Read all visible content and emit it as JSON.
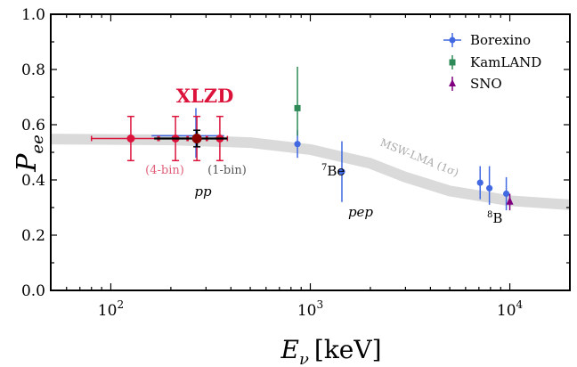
{
  "chart_data": {
    "type": "scatter",
    "xlabel": "E",
    "xlabel_sub": "ν",
    "xlabel_unit": "[keV]",
    "ylabel": "P",
    "ylabel_sub": "ee",
    "xscale": "log",
    "xlim": [
      50,
      20000
    ],
    "ylim": [
      0.0,
      1.0
    ],
    "yticks": [
      "0.0",
      "0.2",
      "0.4",
      "0.6",
      "0.8",
      "1.0"
    ],
    "xticks": [
      {
        "base": "10",
        "exp": "2",
        "value": 100
      },
      {
        "base": "10",
        "exp": "3",
        "value": 1000
      },
      {
        "base": "10",
        "exp": "4",
        "value": 10000
      }
    ],
    "legend_position": "top-right",
    "legend": [
      {
        "label": "Borexino",
        "color": "#4169e1",
        "marker": "circle"
      },
      {
        "label": "KamLAND",
        "color": "#2e8b57",
        "marker": "square"
      },
      {
        "label": "SNO",
        "color": "#800080",
        "marker": "triangle"
      }
    ],
    "band": {
      "label": "MSW-LMA (1σ)",
      "color": "#dadada",
      "points": [
        [
          50,
          0.548
        ],
        [
          200,
          0.545
        ],
        [
          500,
          0.535
        ],
        [
          1000,
          0.51
        ],
        [
          2000,
          0.46
        ],
        [
          3000,
          0.41
        ],
        [
          5000,
          0.36
        ],
        [
          10000,
          0.325
        ],
        [
          20000,
          0.31
        ]
      ]
    },
    "series": [
      {
        "name": "Borexino",
        "color": "#4169e1",
        "marker": "circle",
        "points": [
          {
            "x": 862,
            "y": 0.53,
            "ylow": 0.48,
            "yhigh": 0.58
          },
          {
            "x": 1440,
            "y": 0.43,
            "ylow": 0.32,
            "yhigh": 0.54
          },
          {
            "x": 7100,
            "y": 0.39,
            "ylow": 0.33,
            "yhigh": 0.45
          },
          {
            "x": 7900,
            "y": 0.37,
            "ylow": 0.31,
            "yhigh": 0.45
          },
          {
            "x": 9600,
            "y": 0.35,
            "ylow": 0.29,
            "yhigh": 0.41
          }
        ]
      },
      {
        "name": "KamLAND",
        "color": "#2e8b57",
        "marker": "square",
        "points": [
          {
            "x": 862,
            "y": 0.66,
            "ylow": 0.56,
            "yhigh": 0.81
          }
        ]
      },
      {
        "name": "SNO",
        "color": "#800080",
        "marker": "triangle",
        "points": [
          {
            "x": 10000,
            "y": 0.32,
            "ylow": 0.29,
            "yhigh": 0.35
          }
        ]
      }
    ],
    "xlzd": {
      "label": "XLZD",
      "color": "#dc143c",
      "pp_4bin": [
        {
          "x": 126,
          "y": 0.55,
          "xlow": 80,
          "xhigh": 172,
          "ylow": 0.47,
          "yhigh": 0.63
        },
        {
          "x": 211,
          "y": 0.55,
          "xlow": 175,
          "xhigh": 241,
          "ylow": 0.47,
          "yhigh": 0.63
        },
        {
          "x": 270,
          "y": 0.55,
          "xlow": 244,
          "xhigh": 301,
          "ylow": 0.47,
          "yhigh": 0.63
        },
        {
          "x": 352,
          "y": 0.55,
          "xlow": 305,
          "xhigh": 384,
          "ylow": 0.47,
          "yhigh": 0.63
        }
      ],
      "pp_1bin": {
        "x": 270,
        "y": 0.55,
        "xlow": 165,
        "xhigh": 384,
        "ylow": 0.52,
        "yhigh": 0.58
      },
      "borexino_pp": {
        "x": 267,
        "y": 0.56,
        "xlow": 160,
        "xhigh": 370,
        "ylow": 0.48,
        "yhigh": 0.66
      },
      "marker_color_1bin": "#8b0000",
      "errorbar_color_1bin": "#000000"
    },
    "annotations": [
      {
        "text": "(4-bin)",
        "color": "#e0607a"
      },
      {
        "text": "(1-bin)",
        "color": "#555555"
      },
      {
        "text": "pp",
        "style": "italic"
      },
      {
        "text": "7",
        "sup": true,
        "follow": "Be"
      },
      {
        "text": "pep",
        "style": "italic"
      },
      {
        "text": "8",
        "sup": true,
        "follow": "B"
      }
    ]
  }
}
